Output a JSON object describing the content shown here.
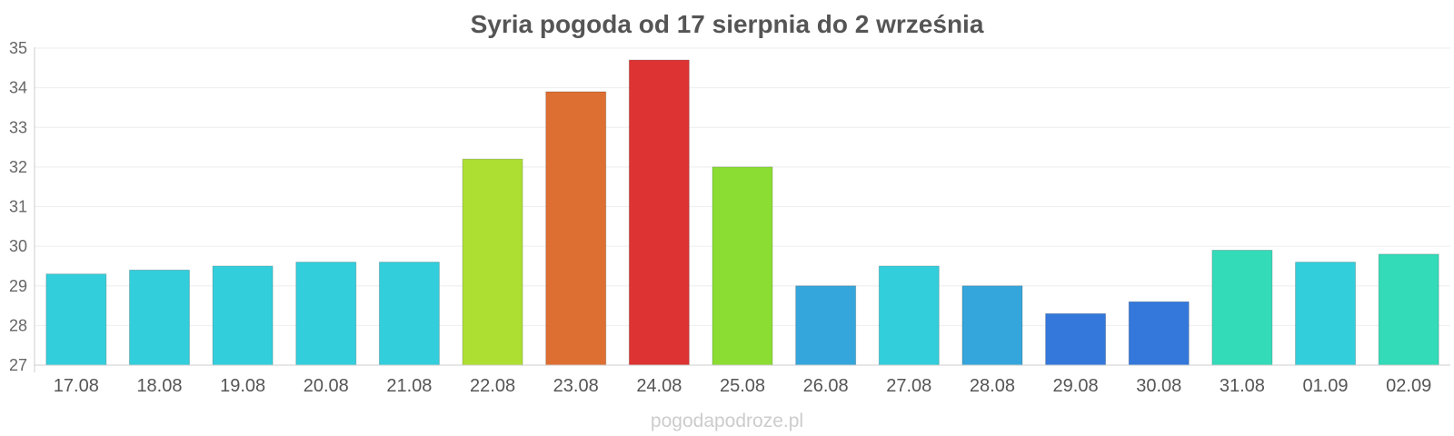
{
  "chart_data": {
    "type": "bar",
    "title": "Syria pogoda od 17 sierpnia do 2 września",
    "xlabel": "",
    "ylabel": "",
    "ylim": [
      27,
      35
    ],
    "yticks": [
      27,
      28,
      29,
      30,
      31,
      32,
      33,
      34,
      35
    ],
    "grid": true,
    "legend": "none",
    "categories": [
      "17.08",
      "18.08",
      "19.08",
      "20.08",
      "21.08",
      "22.08",
      "23.08",
      "24.08",
      "25.08",
      "26.08",
      "27.08",
      "28.08",
      "29.08",
      "30.08",
      "31.08",
      "01.09",
      "02.09"
    ],
    "values": [
      29.3,
      29.4,
      29.5,
      29.6,
      29.6,
      32.2,
      33.9,
      34.7,
      32.0,
      29.0,
      29.5,
      29.0,
      28.3,
      28.6,
      29.9,
      29.6,
      29.8
    ],
    "colors": [
      "#33cedb",
      "#33cedb",
      "#33cedb",
      "#33cedb",
      "#33cedb",
      "#addf33",
      "#de6f33",
      "#dd3333",
      "#8bdd33",
      "#35a6db",
      "#33cedb",
      "#35a6db",
      "#3478db",
      "#3478db",
      "#33dbb8",
      "#33cedb",
      "#33dbb8"
    ]
  },
  "watermark": "pogodapodroze.pl"
}
